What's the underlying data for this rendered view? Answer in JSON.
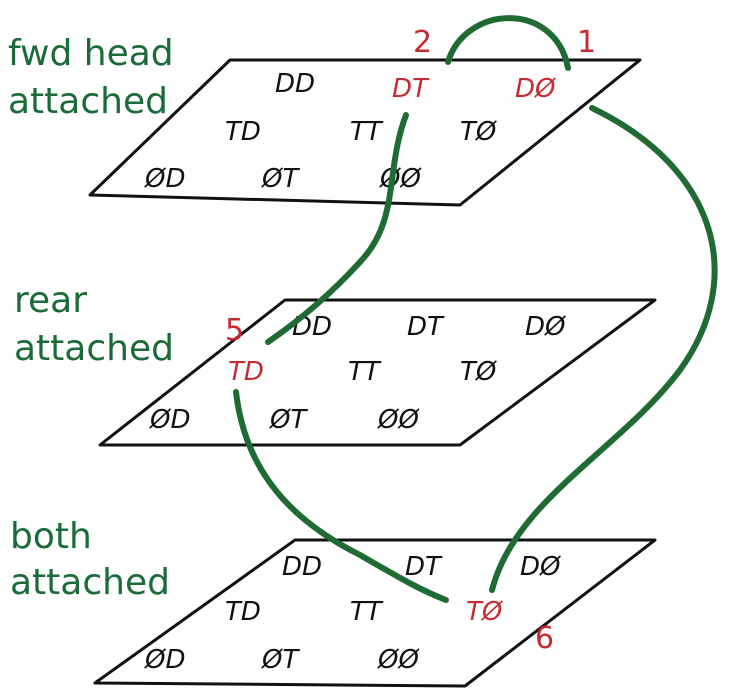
{
  "colors": {
    "ink": "#111111",
    "highlight": "#c62a34",
    "label": "#1b6b3a",
    "link": "#1f6b33"
  },
  "layers": [
    {
      "label_lines": [
        "fwd head",
        "attached"
      ],
      "cells": [
        "DD",
        "DT",
        "DØ",
        "TD",
        "TT",
        "TØ",
        "ØD",
        "ØT",
        "ØØ"
      ]
    },
    {
      "label_lines": [
        "rear",
        "attached"
      ],
      "cells": [
        "DD",
        "DT",
        "DØ",
        "TD",
        "TT",
        "TØ",
        "ØD",
        "ØT",
        "ØØ"
      ]
    },
    {
      "label_lines": [
        "both",
        "attached"
      ],
      "cells": [
        "DD",
        "DT",
        "DØ",
        "TD",
        "TT",
        "TØ",
        "ØD",
        "ØT",
        "ØØ"
      ]
    }
  ],
  "steps": [
    {
      "number": "1",
      "layer": 0,
      "cell": 2
    },
    {
      "number": "2",
      "layer": 0,
      "cell": 1
    },
    {
      "number": "5",
      "layer": 1,
      "cell": 3
    },
    {
      "number": "6",
      "layer": 2,
      "cell": 5
    }
  ],
  "links": [
    {
      "from": "1",
      "to": "2"
    },
    {
      "from": "1",
      "to": "6"
    },
    {
      "from": "2",
      "to": "5"
    },
    {
      "from": "5",
      "to": "6"
    }
  ]
}
